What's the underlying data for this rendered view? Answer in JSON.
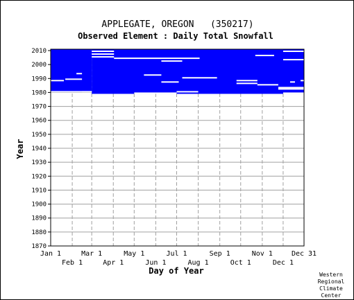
{
  "chart_data": {
    "type": "heatmap",
    "title": "APPLEGATE, OREGON   (350217)",
    "subtitle": "Observed Element : Daily Total Snowfall",
    "xlabel": "Day of Year",
    "ylabel": "Year",
    "credit": [
      "Western",
      "Regional",
      "Climate",
      "Center"
    ],
    "colors": {
      "data": "#0000ff",
      "grid": "#a0a0a0",
      "frame": "#000000",
      "background": "#ffffff"
    },
    "xlim": [
      1,
      365
    ],
    "ylim": [
      1870,
      2011
    ],
    "y_ticks": [
      1870,
      1880,
      1890,
      1900,
      1910,
      1920,
      1930,
      1940,
      1950,
      1960,
      1970,
      1980,
      1990,
      2000,
      2010
    ],
    "x_ticks": [
      {
        "label": "Jan 1",
        "day": 1,
        "row": 0
      },
      {
        "label": "Feb 1",
        "day": 32,
        "row": 1
      },
      {
        "label": "Mar 1",
        "day": 60,
        "row": 0
      },
      {
        "label": "Apr 1",
        "day": 91,
        "row": 1
      },
      {
        "label": "May 1",
        "day": 121,
        "row": 0
      },
      {
        "label": "Jun 1",
        "day": 152,
        "row": 1
      },
      {
        "label": "Jul 1",
        "day": 182,
        "row": 0
      },
      {
        "label": "Aug 1",
        "day": 213,
        "row": 1
      },
      {
        "label": "Sep 1",
        "day": 244,
        "row": 0
      },
      {
        "label": "Oct 1",
        "day": 274,
        "row": 1
      },
      {
        "label": "Nov 1",
        "day": 305,
        "row": 0
      },
      {
        "label": "Dec 1",
        "day": 335,
        "row": 1
      },
      {
        "label": "Dec 31",
        "day": 365,
        "row": 0
      }
    ],
    "record_blocks": [
      {
        "start_day": 1,
        "end_day": 60,
        "start_year": 1980,
        "end_year": 2010
      },
      {
        "start_day": 60,
        "end_day": 365,
        "start_year": 1979,
        "end_year": 2010
      }
    ],
    "missing_segments": [
      {
        "start_day": 1,
        "end_day": 60,
        "year": 1980
      },
      {
        "start_day": 121,
        "end_day": 182,
        "year": 1979
      },
      {
        "start_day": 182,
        "end_day": 213,
        "year": 1980
      },
      {
        "start_day": 335,
        "end_day": 365,
        "year": 1979
      },
      {
        "start_day": 1,
        "end_day": 20,
        "year": 1988
      },
      {
        "start_day": 22,
        "end_day": 46,
        "year": 1989
      },
      {
        "start_day": 38,
        "end_day": 46,
        "year": 1993
      },
      {
        "start_day": 46,
        "end_day": 60,
        "year": 1980
      },
      {
        "start_day": 60,
        "end_day": 92,
        "year": 2007
      },
      {
        "start_day": 60,
        "end_day": 92,
        "year": 2005
      },
      {
        "start_day": 60,
        "end_day": 92,
        "year": 2009
      },
      {
        "start_day": 92,
        "end_day": 215,
        "year": 2004
      },
      {
        "start_day": 135,
        "end_day": 160,
        "year": 1992
      },
      {
        "start_day": 160,
        "end_day": 190,
        "year": 2002
      },
      {
        "start_day": 160,
        "end_day": 185,
        "year": 1987
      },
      {
        "start_day": 190,
        "end_day": 240,
        "year": 1990
      },
      {
        "start_day": 295,
        "end_day": 322,
        "year": 2006
      },
      {
        "start_day": 268,
        "end_day": 298,
        "year": 1986
      },
      {
        "start_day": 268,
        "end_day": 298,
        "year": 1988
      },
      {
        "start_day": 298,
        "end_day": 328,
        "year": 1985
      },
      {
        "start_day": 328,
        "end_day": 365,
        "year": 1982
      },
      {
        "start_day": 328,
        "end_day": 365,
        "year": 1983
      },
      {
        "start_day": 335,
        "end_day": 365,
        "year": 2003
      },
      {
        "start_day": 335,
        "end_day": 365,
        "year": 2009
      },
      {
        "start_day": 345,
        "end_day": 352,
        "year": 1987
      },
      {
        "start_day": 360,
        "end_day": 365,
        "year": 1988
      }
    ]
  }
}
